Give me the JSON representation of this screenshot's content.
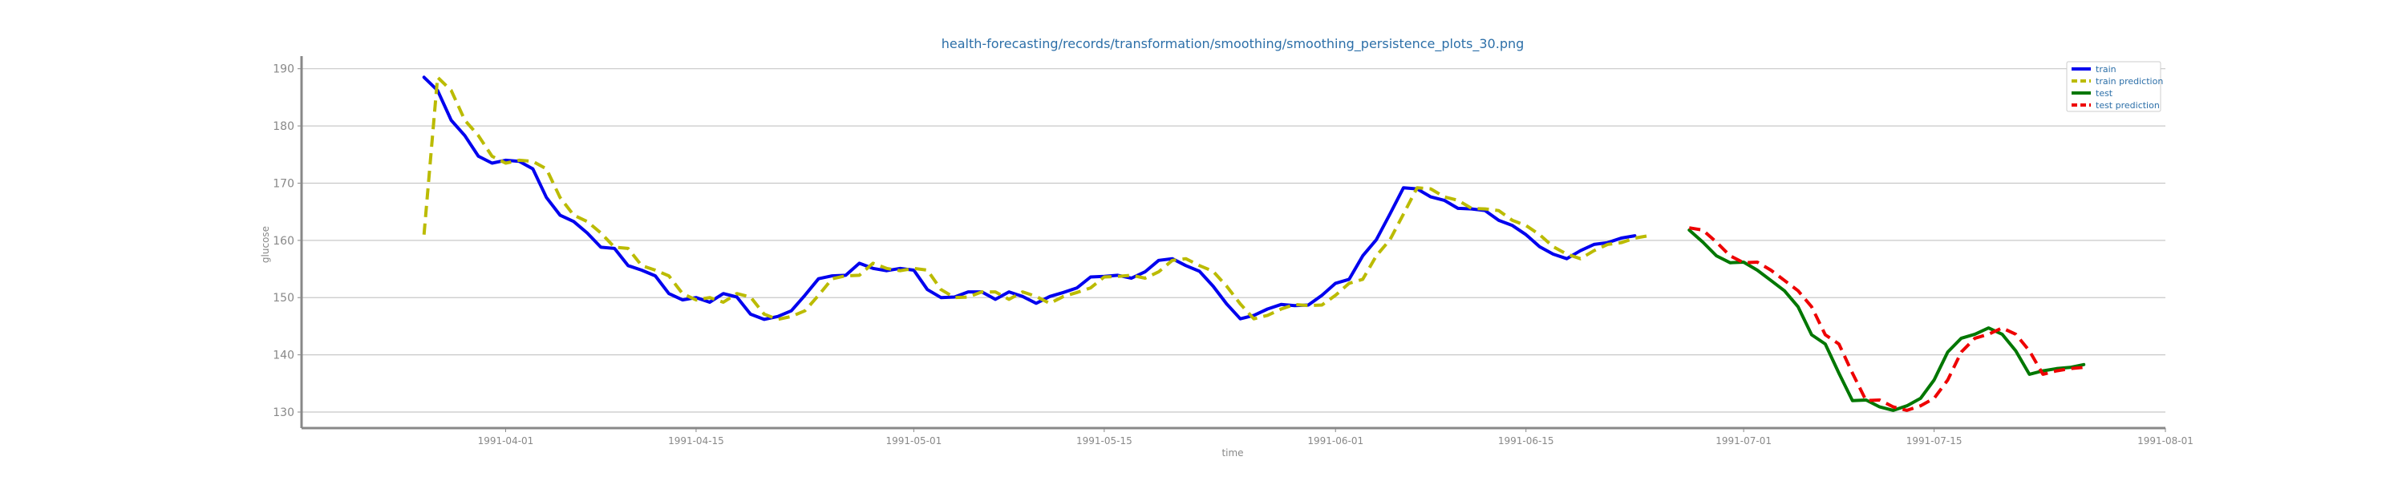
{
  "chart_data": {
    "type": "line",
    "title": "health-forecasting/records/transformation/smoothing/smoothing_persistence_plots_30.png",
    "xlabel": "time",
    "ylabel": "glucose",
    "x_ticks": [
      "1991-04-01",
      "1991-04-15",
      "1991-05-01",
      "1991-05-15",
      "1991-06-01",
      "1991-06-15",
      "1991-07-01",
      "1991-07-15",
      "1991-08-01"
    ],
    "y_ticks": [
      130,
      140,
      150,
      160,
      170,
      180,
      190
    ],
    "xlim": [
      "1991-03-17",
      "1991-08-01"
    ],
    "ylim": [
      127.2,
      192.2
    ],
    "grid": "horizontal",
    "legend_position": "top-right",
    "series": [
      {
        "name": "train",
        "color": "#0000ee",
        "style": "solid",
        "x": [
          "1991-03-26",
          "1991-03-27",
          "1991-03-28",
          "1991-03-29",
          "1991-03-30",
          "1991-03-31",
          "1991-04-01",
          "1991-04-02",
          "1991-04-03",
          "1991-04-04",
          "1991-04-05",
          "1991-04-06",
          "1991-04-07",
          "1991-04-08",
          "1991-04-09",
          "1991-04-10",
          "1991-04-11",
          "1991-04-12",
          "1991-04-13",
          "1991-04-14",
          "1991-04-15",
          "1991-04-16",
          "1991-04-17",
          "1991-04-18",
          "1991-04-19",
          "1991-04-20",
          "1991-04-21",
          "1991-04-22",
          "1991-04-23",
          "1991-04-24",
          "1991-04-25",
          "1991-04-26",
          "1991-04-27",
          "1991-04-28",
          "1991-04-29",
          "1991-04-30",
          "1991-05-01",
          "1991-05-02",
          "1991-05-03",
          "1991-05-04",
          "1991-05-05",
          "1991-05-06",
          "1991-05-07",
          "1991-05-08",
          "1991-05-09",
          "1991-05-10",
          "1991-05-11",
          "1991-05-12",
          "1991-05-13",
          "1991-05-14",
          "1991-05-15",
          "1991-05-16",
          "1991-05-17",
          "1991-05-18",
          "1991-05-19",
          "1991-05-20",
          "1991-05-21",
          "1991-05-22",
          "1991-05-23",
          "1991-05-24",
          "1991-05-25",
          "1991-05-26",
          "1991-05-27",
          "1991-05-28",
          "1991-05-29",
          "1991-05-30",
          "1991-05-31",
          "1991-06-01",
          "1991-06-02",
          "1991-06-03",
          "1991-06-04",
          "1991-06-05",
          "1991-06-06",
          "1991-06-07",
          "1991-06-08",
          "1991-06-09",
          "1991-06-10",
          "1991-06-11",
          "1991-06-12",
          "1991-06-13",
          "1991-06-14",
          "1991-06-15",
          "1991-06-16",
          "1991-06-17",
          "1991-06-18",
          "1991-06-19",
          "1991-06-20",
          "1991-06-21",
          "1991-06-22",
          "1991-06-23",
          "1991-06-24",
          "1991-06-25",
          "1991-06-26"
        ],
        "y": [
          188.5,
          186.2,
          181.0,
          178.3,
          174.7,
          173.5,
          174.0,
          173.8,
          172.5,
          167.5,
          164.4,
          163.3,
          161.3,
          158.8,
          158.6,
          155.6,
          154.8,
          153.8,
          150.7,
          149.6,
          150.0,
          149.2,
          150.7,
          150.1,
          147.1,
          146.2,
          146.7,
          147.7,
          150.4,
          153.3,
          153.8,
          153.9,
          156.0,
          155.1,
          154.7,
          155.1,
          154.8,
          151.4,
          150.0,
          150.1,
          151.0,
          151.0,
          149.7,
          151.0,
          150.2,
          149.0,
          150.2,
          150.9,
          151.7,
          153.6,
          153.7,
          153.9,
          153.4,
          154.5,
          156.5,
          156.8,
          155.6,
          154.6,
          152.0,
          148.9,
          146.3,
          146.9,
          148.0,
          148.8,
          148.6,
          148.7,
          150.4,
          152.5,
          153.2,
          157.3,
          160.1,
          164.6,
          169.2,
          169.0,
          167.6,
          167.0,
          165.6,
          165.5,
          165.2,
          163.5,
          162.6,
          161.0,
          158.9,
          157.6,
          156.8,
          158.2,
          159.3,
          159.6,
          160.4,
          160.8,
          null,
          null,
          null
        ],
        "values_note": ""
      },
      {
        "name": "train prediction",
        "color": "#bbbb00",
        "style": "dashed",
        "x": [
          "1991-03-26",
          "1991-03-27",
          "1991-03-28",
          "1991-03-29",
          "1991-03-30",
          "1991-03-31",
          "1991-04-01",
          "1991-04-02",
          "1991-04-03",
          "1991-04-04",
          "1991-04-05",
          "1991-04-06",
          "1991-04-07",
          "1991-04-08",
          "1991-04-09",
          "1991-04-10",
          "1991-04-11",
          "1991-04-12",
          "1991-04-13",
          "1991-04-14",
          "1991-04-15",
          "1991-04-16",
          "1991-04-17",
          "1991-04-18",
          "1991-04-19",
          "1991-04-20",
          "1991-04-21",
          "1991-04-22",
          "1991-04-23",
          "1991-04-24",
          "1991-04-25",
          "1991-04-26",
          "1991-04-27",
          "1991-04-28",
          "1991-04-29",
          "1991-04-30",
          "1991-05-01",
          "1991-05-02",
          "1991-05-03",
          "1991-05-04",
          "1991-05-05",
          "1991-05-06",
          "1991-05-07",
          "1991-05-08",
          "1991-05-09",
          "1991-05-10",
          "1991-05-11",
          "1991-05-12",
          "1991-05-13",
          "1991-05-14",
          "1991-05-15",
          "1991-05-16",
          "1991-05-17",
          "1991-05-18",
          "1991-05-19",
          "1991-05-20",
          "1991-05-21",
          "1991-05-22",
          "1991-05-23",
          "1991-05-24",
          "1991-05-25",
          "1991-05-26",
          "1991-05-27",
          "1991-05-28",
          "1991-05-29",
          "1991-05-30",
          "1991-05-31",
          "1991-06-01",
          "1991-06-02",
          "1991-06-03",
          "1991-06-04",
          "1991-06-05",
          "1991-06-06",
          "1991-06-07",
          "1991-06-08",
          "1991-06-09",
          "1991-06-10",
          "1991-06-11",
          "1991-06-12",
          "1991-06-13",
          "1991-06-14",
          "1991-06-15",
          "1991-06-16",
          "1991-06-17",
          "1991-06-18",
          "1991-06-19",
          "1991-06-20",
          "1991-06-21",
          "1991-06-22",
          "1991-06-23",
          "1991-06-24",
          "1991-06-25",
          "1991-06-26"
        ],
        "y": [
          161.0,
          188.5,
          186.2,
          181.0,
          178.3,
          174.7,
          173.5,
          174.0,
          173.8,
          172.5,
          167.5,
          164.4,
          163.3,
          161.3,
          158.8,
          158.6,
          155.6,
          154.8,
          153.8,
          150.7,
          149.6,
          150.0,
          149.2,
          150.7,
          150.1,
          147.1,
          146.2,
          146.7,
          147.7,
          150.4,
          153.3,
          153.8,
          153.9,
          156.0,
          155.1,
          154.7,
          155.1,
          154.8,
          151.4,
          150.0,
          150.1,
          151.0,
          151.0,
          149.7,
          151.0,
          150.2,
          149.0,
          150.2,
          150.9,
          151.7,
          153.6,
          153.7,
          153.9,
          153.4,
          154.5,
          156.5,
          156.8,
          155.6,
          154.6,
          152.0,
          148.9,
          146.3,
          146.9,
          148.0,
          148.8,
          148.6,
          148.7,
          150.4,
          152.5,
          153.2,
          157.3,
          160.1,
          164.6,
          169.2,
          169.0,
          167.6,
          167.0,
          165.6,
          165.5,
          165.2,
          163.5,
          162.6,
          161.0,
          158.9,
          157.6,
          156.8,
          158.2,
          159.3,
          159.6,
          160.4,
          160.8,
          null,
          null
        ],
        "values_note": ""
      },
      {
        "name": "test",
        "color": "#007700",
        "style": "solid",
        "x": [
          "1991-06-27",
          "1991-06-28",
          "1991-06-29",
          "1991-06-30",
          "1991-07-01",
          "1991-07-02",
          "1991-07-03",
          "1991-07-04",
          "1991-07-05",
          "1991-07-06",
          "1991-07-07",
          "1991-07-08",
          "1991-07-09",
          "1991-07-10",
          "1991-07-11",
          "1991-07-12",
          "1991-07-13",
          "1991-07-14",
          "1991-07-15",
          "1991-07-16",
          "1991-07-17",
          "1991-07-18",
          "1991-07-19",
          "1991-07-20",
          "1991-07-21",
          "1991-07-22",
          "1991-07-23",
          "1991-07-24",
          "1991-07-25",
          "1991-07-26"
        ],
        "y": [
          161.8,
          159.7,
          157.3,
          156.1,
          156.2,
          154.8,
          153.0,
          151.2,
          148.4,
          143.5,
          141.9,
          136.8,
          132.0,
          132.1,
          130.9,
          130.3,
          131.1,
          132.4,
          135.6,
          140.5,
          142.9,
          143.6,
          144.7,
          143.6,
          140.7,
          136.6,
          137.2,
          137.6,
          137.8,
          138.3
        ],
        "values_note": ""
      },
      {
        "name": "test prediction",
        "color": "#ee0000",
        "style": "dashed",
        "x": [
          "1991-06-27",
          "1991-06-28",
          "1991-06-29",
          "1991-06-30",
          "1991-07-01",
          "1991-07-02",
          "1991-07-03",
          "1991-07-04",
          "1991-07-05",
          "1991-07-06",
          "1991-07-07",
          "1991-07-08",
          "1991-07-09",
          "1991-07-10",
          "1991-07-11",
          "1991-07-12",
          "1991-07-13",
          "1991-07-14",
          "1991-07-15",
          "1991-07-16",
          "1991-07-17",
          "1991-07-18",
          "1991-07-19",
          "1991-07-20",
          "1991-07-21",
          "1991-07-22",
          "1991-07-23",
          "1991-07-24",
          "1991-07-25",
          "1991-07-26"
        ],
        "y": [
          162.2,
          161.8,
          159.7,
          157.3,
          156.1,
          156.2,
          154.8,
          153.0,
          151.2,
          148.4,
          143.5,
          141.9,
          136.8,
          132.0,
          132.1,
          130.9,
          130.3,
          131.1,
          132.4,
          135.6,
          140.5,
          142.9,
          143.6,
          144.7,
          143.6,
          140.7,
          136.6,
          137.2,
          137.6,
          137.8
        ],
        "values_note": ""
      }
    ]
  },
  "colors": {
    "title": "#2c6fa8",
    "axis_text": "#888888",
    "grid": "#c8c8c8",
    "spine": "#888888",
    "legend_text": "#2c6fa8"
  }
}
